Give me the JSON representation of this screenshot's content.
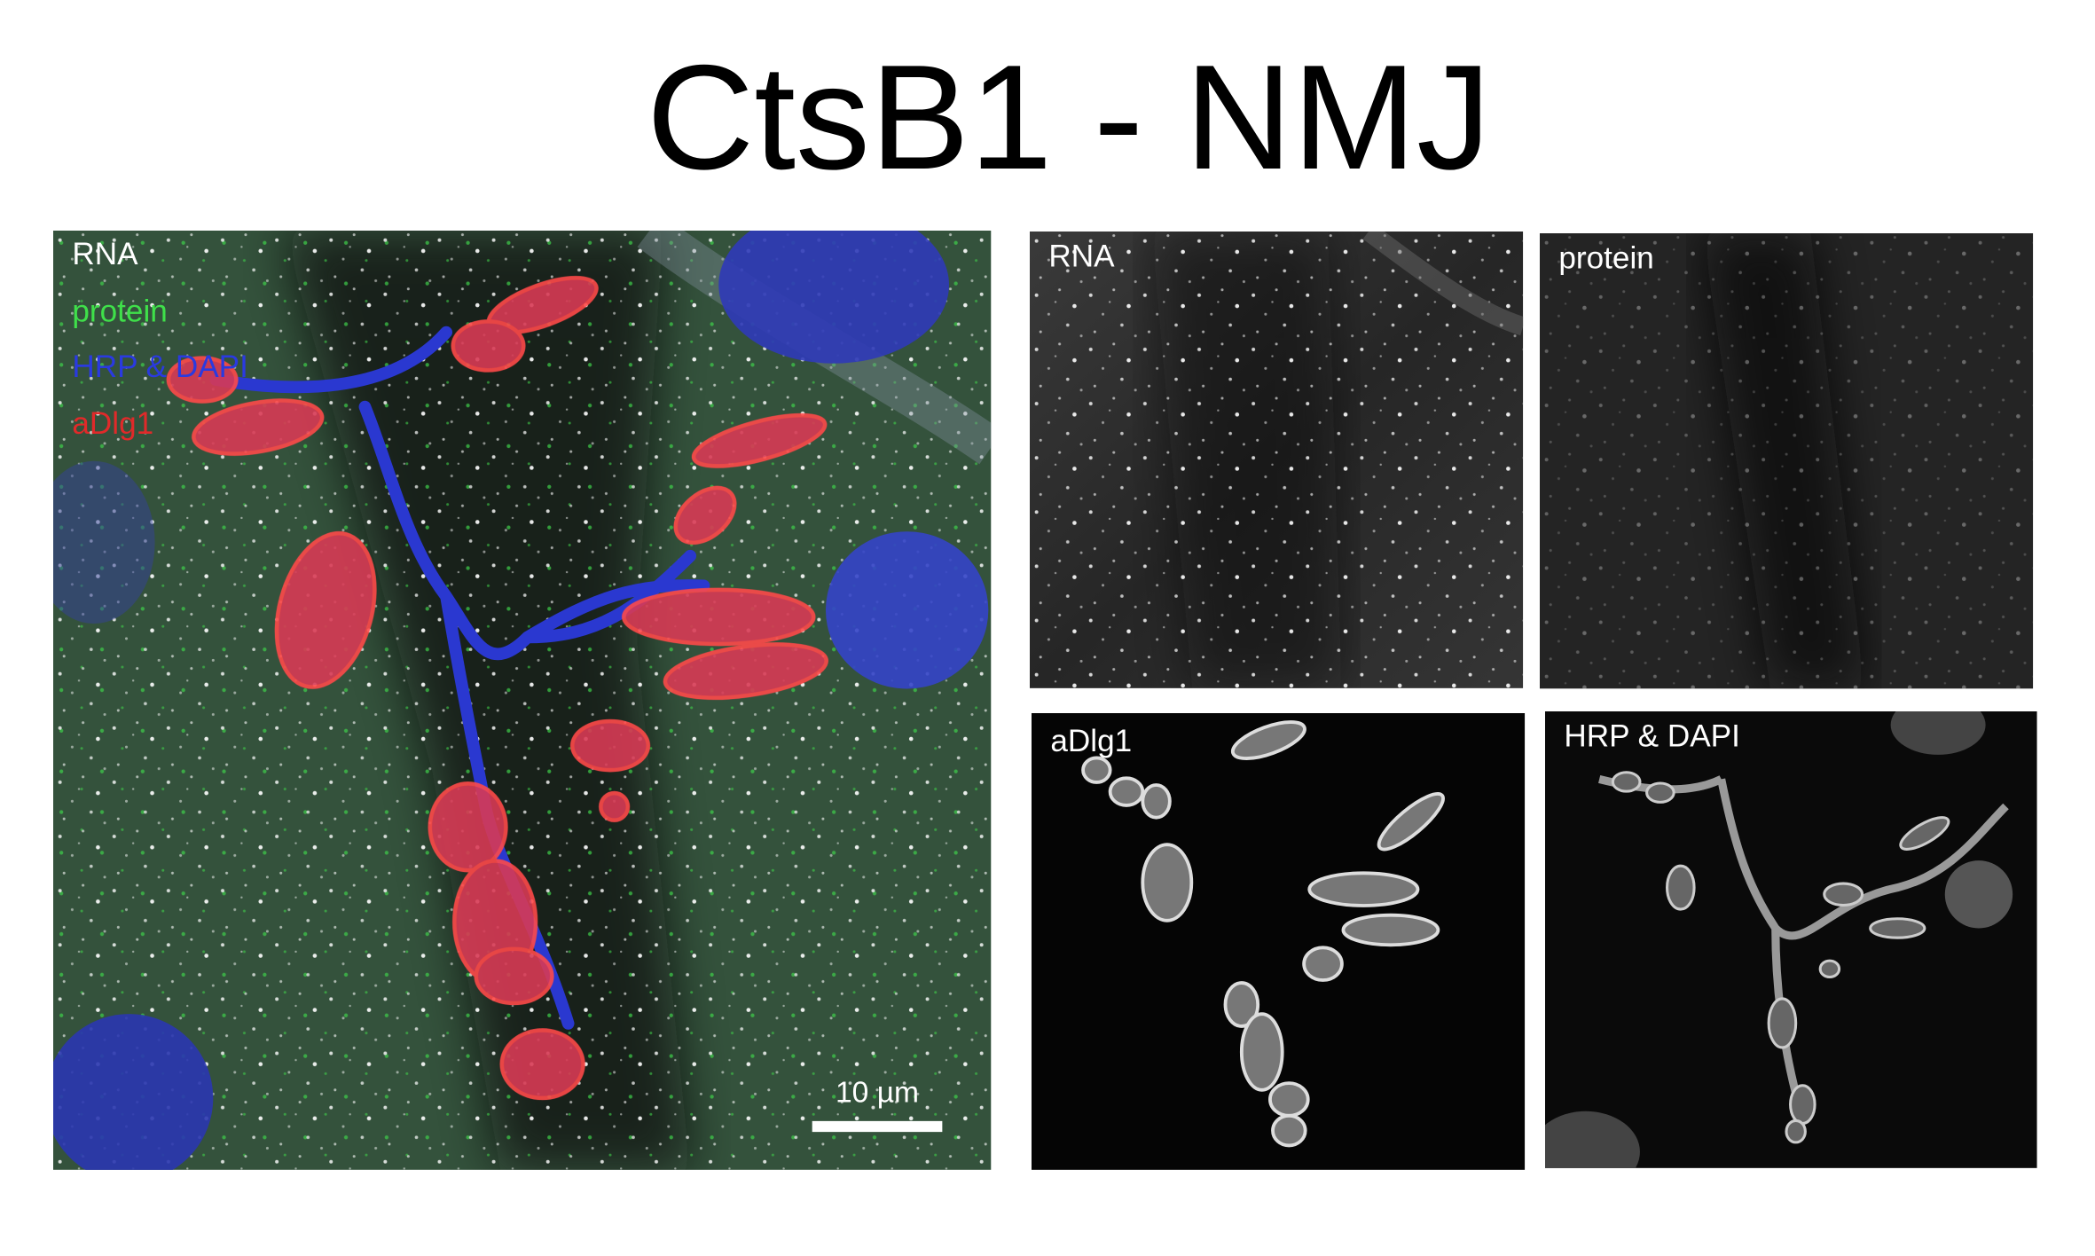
{
  "title": "CtsB1 - NMJ",
  "main_panel": {
    "labels": [
      "RNA",
      "protein",
      "HRP & DAPI",
      "aDlg1"
    ],
    "scale_bar": "10 µm"
  },
  "panels": [
    {
      "label": "RNA"
    },
    {
      "label": "protein"
    },
    {
      "label": "aDlg1"
    },
    {
      "label": "HRP & DAPI"
    }
  ]
}
